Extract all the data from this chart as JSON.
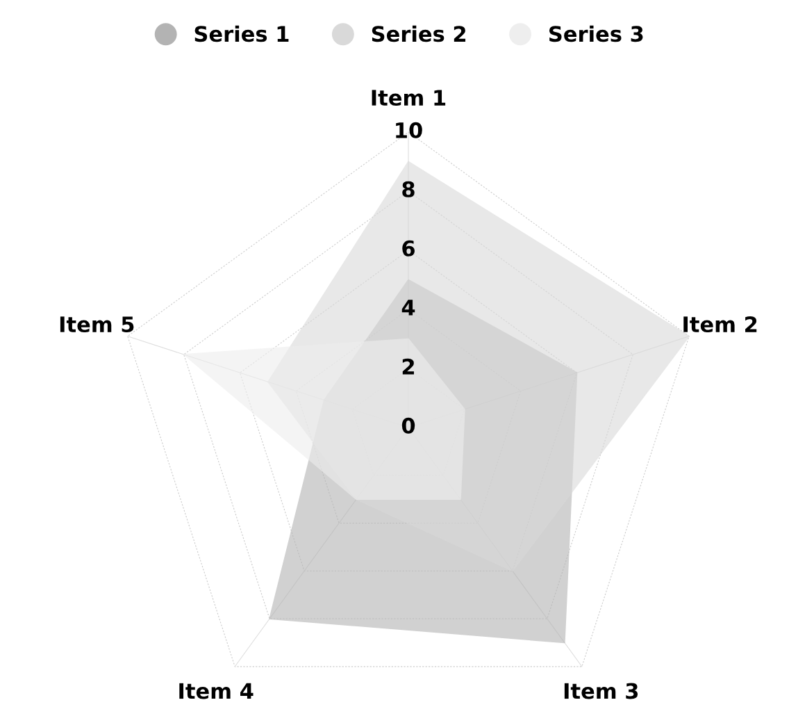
{
  "chart_data": {
    "type": "radar",
    "categories": [
      "Item 1",
      "Item 2",
      "Item 3",
      "Item 4",
      "Item 5"
    ],
    "series": [
      {
        "name": "Series 1",
        "color": "#b3b3b3",
        "values": [
          5,
          6,
          9,
          8,
          3
        ]
      },
      {
        "name": "Series 2",
        "color": "#d9d9d9",
        "values": [
          9,
          10,
          6,
          3,
          5
        ]
      },
      {
        "name": "Series 3",
        "color": "#eeeeee",
        "values": [
          3,
          2,
          3,
          3,
          8
        ]
      }
    ],
    "ylim": [
      0,
      10
    ],
    "yticks": [
      0,
      2,
      4,
      6,
      8,
      10
    ],
    "grid": true,
    "legend": "top"
  }
}
